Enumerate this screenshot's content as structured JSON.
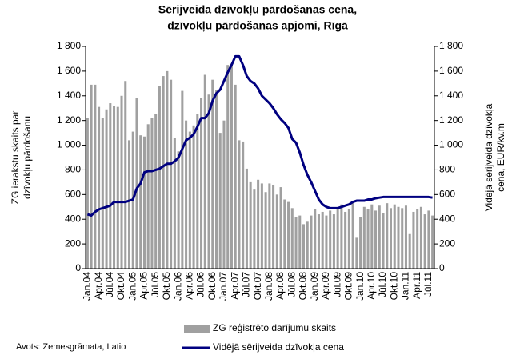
{
  "chart_data": {
    "type": "bar-line",
    "title_lines": [
      "Sērijveida dzīvokļu pārdošanas cena,",
      "dzīvokļu pārdošanas apjomi, Rīgā"
    ],
    "y_label_lines": [
      "ZG ierakstu skaits par",
      "dzīvokļu pārdošanu"
    ],
    "y2_label_lines": [
      "Vidējā sērijveida dzīvokļa",
      "cena, EUR/kv.m"
    ],
    "source": "Avots: Zemesgrāmata, Latio",
    "categories": [
      "Jan.04",
      null,
      null,
      "Apr.04",
      null,
      null,
      "Jūl.04",
      null,
      null,
      "Okt.04",
      null,
      null,
      "Jan.05",
      null,
      null,
      "Apr.05",
      null,
      null,
      "Jūl.05",
      null,
      null,
      "Okt.05",
      null,
      null,
      "Jan.06",
      null,
      null,
      "Apr.06",
      null,
      null,
      "Jūl.06",
      null,
      null,
      "Okt.06",
      null,
      null,
      "Jan.07",
      null,
      null,
      "Apr.07",
      null,
      null,
      "Jūl.07",
      null,
      null,
      "Okt.07",
      null,
      null,
      "Jan.08",
      null,
      null,
      "Apr.08",
      null,
      null,
      "Jūl.08",
      null,
      null,
      "Okt.08",
      null,
      null,
      "Jan.09",
      null,
      null,
      "Apr.09",
      null,
      null,
      "Jūl.09",
      null,
      null,
      "Okt.09",
      null,
      null,
      "Jan.10",
      null,
      null,
      "Apr.10",
      null,
      null,
      "Jūl.10",
      null,
      null,
      "Okt.10",
      null,
      null,
      "Jan.11",
      null,
      null,
      "Apr.11",
      null,
      null,
      "Jūl.11",
      null
    ],
    "series": [
      {
        "name": "ZG reģistrēto darījumu skaits",
        "type": "bar",
        "color": "#a0a0a0",
        "values": [
          1220,
          1490,
          1490,
          1310,
          1220,
          1290,
          1340,
          1320,
          1310,
          1400,
          1520,
          1040,
          1110,
          1380,
          1080,
          1070,
          1170,
          1220,
          1250,
          1480,
          1560,
          1600,
          1530,
          1060,
          950,
          1440,
          1200,
          1110,
          1160,
          1250,
          1380,
          1570,
          1410,
          1530,
          1450,
          1100,
          1200,
          1650,
          1660,
          1490,
          1040,
          1030,
          810,
          700,
          640,
          720,
          690,
          620,
          690,
          680,
          600,
          660,
          560,
          540,
          490,
          420,
          430,
          360,
          380,
          430,
          480,
          440,
          460,
          430,
          470,
          440,
          490,
          520,
          460,
          480,
          530,
          250,
          420,
          500,
          480,
          520,
          470,
          510,
          450,
          530,
          490,
          520,
          500,
          490,
          510,
          280,
          460,
          480,
          500,
          440,
          470,
          430
        ]
      },
      {
        "name": "Vidējā sērijveida dzīvokļa cena",
        "type": "line",
        "axis": "y2",
        "color": "#000080",
        "values": [
          440,
          430,
          460,
          480,
          490,
          500,
          510,
          540,
          540,
          540,
          540,
          550,
          560,
          650,
          690,
          780,
          790,
          790,
          800,
          810,
          830,
          850,
          850,
          870,
          900,
          970,
          1040,
          1060,
          1090,
          1150,
          1220,
          1220,
          1260,
          1360,
          1420,
          1450,
          1520,
          1590,
          1650,
          1720,
          1720,
          1650,
          1560,
          1520,
          1500,
          1460,
          1400,
          1370,
          1340,
          1300,
          1250,
          1210,
          1180,
          1140,
          1050,
          1020,
          940,
          840,
          760,
          700,
          630,
          560,
          520,
          500,
          490,
          490,
          490,
          500,
          510,
          520,
          540,
          550,
          550,
          550,
          560,
          560,
          570,
          575,
          580,
          580,
          580,
          580,
          580,
          580,
          580,
          580,
          580,
          580,
          580,
          580,
          580,
          575
        ]
      }
    ],
    "ylim": [
      0,
      1800
    ],
    "yticks": [
      0,
      200,
      400,
      600,
      800,
      {
        "value": 1000,
        "label": "1 000"
      },
      {
        "value": 1200,
        "label": "1 200"
      },
      {
        "value": 1400,
        "label": "1 400"
      },
      {
        "value": 1600,
        "label": "1 600"
      },
      {
        "value": 1800,
        "label": "1 800"
      }
    ],
    "y2lim": [
      0,
      1800
    ],
    "y2ticks": [
      0,
      200,
      400,
      600,
      800,
      {
        "value": 1000,
        "label": "1 000"
      },
      {
        "value": 1200,
        "label": "1 200"
      },
      {
        "value": 1400,
        "label": "1 400"
      },
      {
        "value": 1600,
        "label": "1 600"
      },
      {
        "value": 1800,
        "label": "1 800"
      }
    ],
    "grid": false,
    "legend": "bottom"
  }
}
